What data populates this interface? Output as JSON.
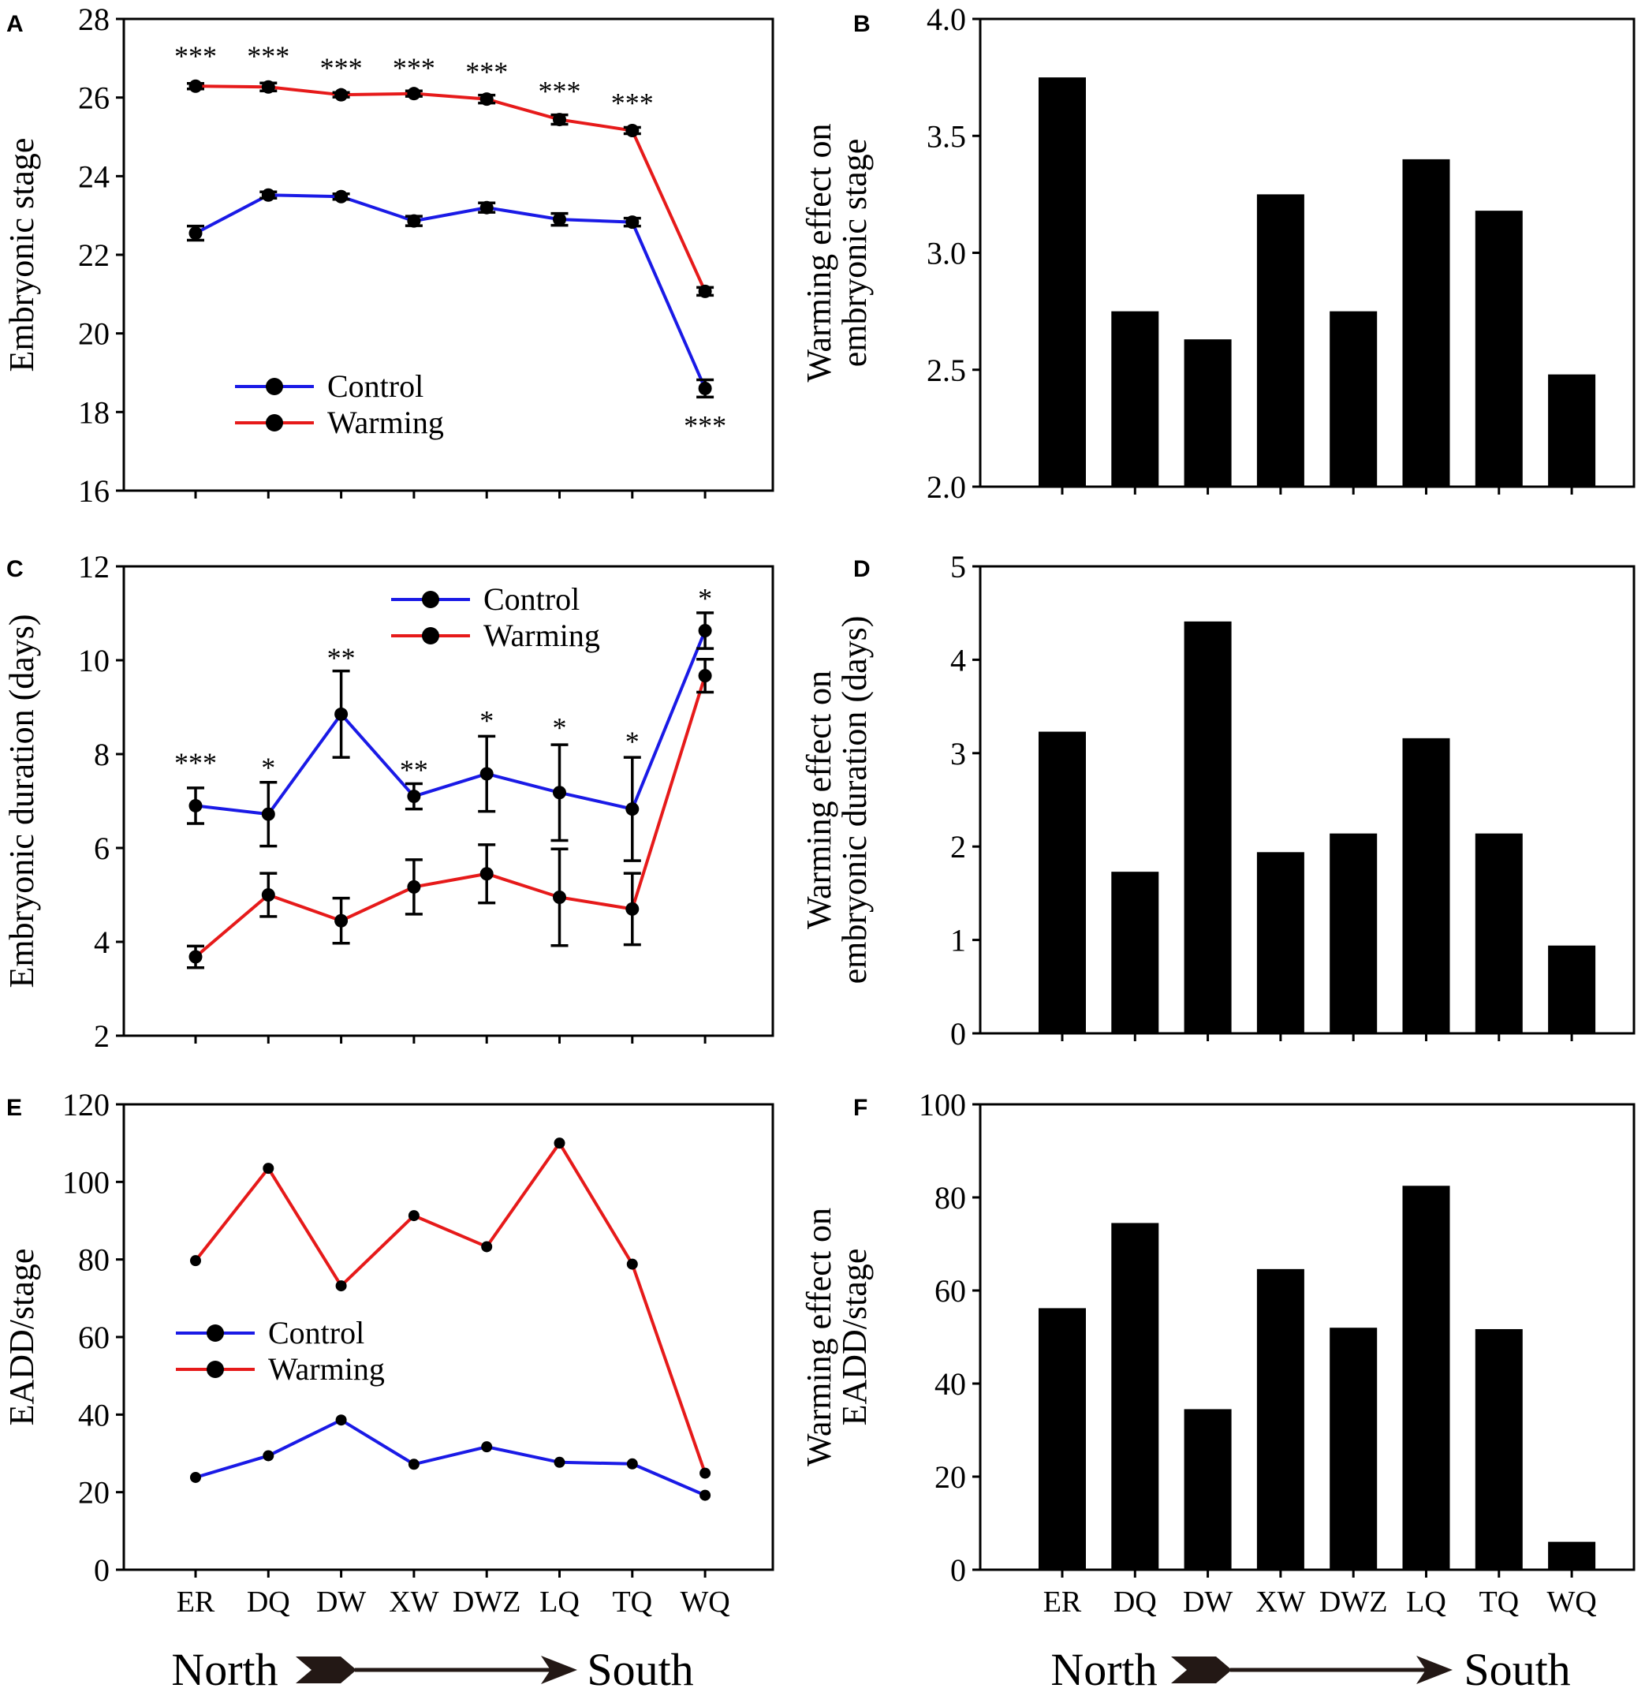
{
  "figure": {
    "direction": {
      "start": "North",
      "end": "South"
    }
  },
  "chart_data": [
    {
      "panel": "A",
      "type": "line",
      "title": "",
      "xlabel": "",
      "ylabel": "Embryonic stage",
      "categories": [
        "ER",
        "DQ",
        "DW",
        "XW",
        "DWZ",
        "LQ",
        "TQ",
        "WQ"
      ],
      "show_category_labels": false,
      "ylim": [
        16,
        28
      ],
      "yticks": [
        16,
        18,
        20,
        22,
        24,
        26,
        28
      ],
      "tick_labels": [
        "16",
        "18",
        "20",
        "22",
        "24",
        "26",
        "28"
      ],
      "legend_position": "bottom-left",
      "series": [
        {
          "name": "Control",
          "color": "#1a1ae6",
          "values": [
            22.55,
            23.52,
            23.48,
            22.86,
            23.2,
            22.9,
            22.83,
            18.6
          ],
          "errors": [
            0.18,
            0.08,
            0.07,
            0.12,
            0.12,
            0.15,
            0.1,
            0.22
          ]
        },
        {
          "name": "Warming",
          "color": "#e61a1a",
          "values": [
            26.29,
            26.27,
            26.07,
            26.1,
            25.96,
            25.44,
            25.16,
            21.07
          ],
          "errors": [
            0.07,
            0.1,
            0.06,
            0.07,
            0.1,
            0.12,
            0.08,
            0.1
          ]
        }
      ],
      "annotations": [
        {
          "category": "ER",
          "text": "***",
          "at": 27.1
        },
        {
          "category": "DQ",
          "text": "***",
          "at": 27.1
        },
        {
          "category": "DW",
          "text": "***",
          "at": 26.8
        },
        {
          "category": "XW",
          "text": "***",
          "at": 26.8
        },
        {
          "category": "DWZ",
          "text": "***",
          "at": 26.7
        },
        {
          "category": "LQ",
          "text": "***",
          "at": 26.2
        },
        {
          "category": "TQ",
          "text": "***",
          "at": 25.9
        },
        {
          "category": "WQ",
          "text": "***",
          "at": 17.7
        }
      ]
    },
    {
      "panel": "B",
      "type": "bar",
      "title": "",
      "xlabel": "",
      "ylabel": [
        "Warming effect on",
        "embryonic stage"
      ],
      "categories": [
        "ER",
        "DQ",
        "DW",
        "XW",
        "DWZ",
        "LQ",
        "TQ",
        "WQ"
      ],
      "show_category_labels": false,
      "ylim": [
        2.0,
        4.0
      ],
      "yticks": [
        2.0,
        2.5,
        3.0,
        3.5,
        4.0
      ],
      "tick_labels": [
        "2.0",
        "2.5",
        "3.0",
        "3.5",
        "4.0"
      ],
      "values": [
        3.75,
        2.75,
        2.63,
        3.25,
        2.75,
        3.4,
        3.18,
        2.48
      ]
    },
    {
      "panel": "C",
      "type": "line",
      "title": "",
      "xlabel": "",
      "ylabel": "Embryonic duration (days)",
      "categories": [
        "ER",
        "DQ",
        "DW",
        "XW",
        "DWZ",
        "LQ",
        "TQ",
        "WQ"
      ],
      "show_category_labels": false,
      "ylim": [
        2,
        12
      ],
      "yticks": [
        2,
        4,
        6,
        8,
        10,
        12
      ],
      "tick_labels": [
        "2",
        "4",
        "6",
        "8",
        "10",
        "12"
      ],
      "legend_position": "top-right",
      "series": [
        {
          "name": "Control",
          "color": "#1a1ae6",
          "values": [
            6.9,
            6.72,
            8.85,
            7.1,
            7.58,
            7.18,
            6.83,
            10.63
          ],
          "errors": [
            0.38,
            0.68,
            0.92,
            0.27,
            0.8,
            1.02,
            1.1,
            0.38
          ]
        },
        {
          "name": "Warming",
          "color": "#e61a1a",
          "values": [
            3.68,
            5.0,
            4.45,
            5.17,
            5.45,
            4.95,
            4.7,
            9.67
          ],
          "errors": [
            0.23,
            0.46,
            0.48,
            0.58,
            0.62,
            1.03,
            0.76,
            0.35
          ]
        }
      ],
      "annotations": [
        {
          "category": "ER",
          "text": "***",
          "at": 7.85
        },
        {
          "category": "DQ",
          "text": "*",
          "at": 7.75
        },
        {
          "category": "DW",
          "text": "**",
          "at": 10.08
        },
        {
          "category": "XW",
          "text": "**",
          "at": 7.7
        },
        {
          "category": "DWZ",
          "text": "*",
          "at": 8.75
        },
        {
          "category": "LQ",
          "text": "*",
          "at": 8.6
        },
        {
          "category": "TQ",
          "text": "*",
          "at": 8.3
        },
        {
          "category": "WQ",
          "text": "*",
          "at": 11.35
        }
      ]
    },
    {
      "panel": "D",
      "type": "bar",
      "title": "",
      "xlabel": "",
      "ylabel": [
        "Warming effect on",
        "embryonic duration (days)"
      ],
      "categories": [
        "ER",
        "DQ",
        "DW",
        "XW",
        "DWZ",
        "LQ",
        "TQ",
        "WQ"
      ],
      "show_category_labels": false,
      "ylim": [
        0,
        5
      ],
      "yticks": [
        0,
        1,
        2,
        3,
        4,
        5
      ],
      "tick_labels": [
        "0",
        "1",
        "2",
        "3",
        "4",
        "5"
      ],
      "values": [
        3.23,
        1.73,
        4.41,
        1.94,
        2.14,
        3.16,
        2.14,
        0.94
      ]
    },
    {
      "panel": "E",
      "type": "line",
      "title": "",
      "xlabel": "",
      "ylabel": "EADD/stage",
      "categories": [
        "ER",
        "DQ",
        "DW",
        "XW",
        "DWZ",
        "LQ",
        "TQ",
        "WQ"
      ],
      "show_category_labels": true,
      "ylim": [
        0,
        120
      ],
      "yticks": [
        0,
        20,
        40,
        60,
        80,
        100,
        120
      ],
      "tick_labels": [
        "0",
        "20",
        "40",
        "60",
        "80",
        "100",
        "120"
      ],
      "legend_position": "center-left",
      "series": [
        {
          "name": "Control",
          "color": "#1a1ae6",
          "values": [
            23.8,
            29.4,
            38.6,
            27.2,
            31.7,
            27.7,
            27.3,
            19.2
          ],
          "errors": [
            0,
            0,
            0,
            0,
            0,
            0,
            0,
            0
          ]
        },
        {
          "name": "Warming",
          "color": "#e61a1a",
          "values": [
            79.7,
            103.5,
            73.2,
            91.3,
            83.3,
            110.0,
            78.8,
            24.9
          ],
          "errors": [
            0,
            0,
            0,
            0,
            0,
            0,
            0,
            0
          ]
        }
      ],
      "annotations": []
    },
    {
      "panel": "F",
      "type": "bar",
      "title": "",
      "xlabel": "",
      "ylabel": [
        "Warming effect on",
        "EADD/stage"
      ],
      "categories": [
        "ER",
        "DQ",
        "DW",
        "XW",
        "DWZ",
        "LQ",
        "TQ",
        "WQ"
      ],
      "show_category_labels": true,
      "ylim": [
        0,
        100
      ],
      "yticks": [
        0,
        20,
        40,
        60,
        80,
        100
      ],
      "tick_labels": [
        "0",
        "20",
        "40",
        "60",
        "80",
        "100"
      ],
      "values": [
        56.2,
        74.5,
        34.5,
        64.6,
        52.0,
        82.5,
        51.7,
        6.0
      ]
    }
  ]
}
